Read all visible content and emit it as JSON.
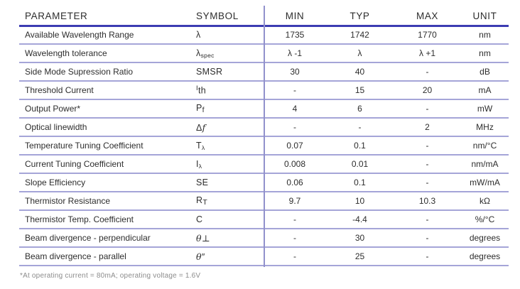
{
  "colors": {
    "header_rule": "#3c3cb2",
    "row_rule": "#a5a5d8",
    "divider": "#9191cc",
    "text": "#2d2d2d",
    "footnote": "#8c8c8c"
  },
  "table": {
    "headers": [
      "PARAMETER",
      "SYMBOL",
      "MIN",
      "TYP",
      "MAX",
      "UNIT"
    ],
    "rows": [
      {
        "parameter": "Available Wavelength Range",
        "symbol": [
          {
            "t": "λ"
          }
        ],
        "min": "1735",
        "typ": "1742",
        "max": "1770",
        "unit": "nm"
      },
      {
        "parameter": "Wavelength tolerance",
        "symbol": [
          {
            "t": "λ"
          },
          {
            "t": "spec",
            "cls": "sub-small"
          }
        ],
        "min": "λ -1",
        "typ": "λ",
        "max": "λ +1",
        "unit": "nm"
      },
      {
        "parameter": "Side Mode Supression Ratio",
        "symbol": [
          {
            "t": "SMSR"
          }
        ],
        "min": "30",
        "typ": "40",
        "max": "-",
        "unit": "dB"
      },
      {
        "parameter": "Threshold Current",
        "symbol": [
          {
            "t": "I",
            "cls": "sup"
          },
          {
            "t": "th"
          }
        ],
        "min": "-",
        "typ": "15",
        "max": "20",
        "unit": "mA"
      },
      {
        "parameter": "Output Power*",
        "symbol": [
          {
            "t": "P"
          },
          {
            "t": "f",
            "cls": "sub"
          }
        ],
        "min": "4",
        "typ": "6",
        "max": "-",
        "unit": "mW"
      },
      {
        "parameter": "Optical linewidth",
        "symbol": [
          {
            "t": "Δ"
          },
          {
            "t": "f",
            "cls": "italic"
          }
        ],
        "min": "-",
        "typ": "-",
        "max": "2",
        "unit": "MHz"
      },
      {
        "parameter": "Temperature Tuning Coefficient",
        "symbol": [
          {
            "t": "T"
          },
          {
            "t": "λ",
            "cls": "sub-small"
          }
        ],
        "min": "0.07",
        "typ": "0.1",
        "max": "-",
        "unit": "nm/°C"
      },
      {
        "parameter": "Current Tuning Coefficient",
        "symbol": [
          {
            "t": "I"
          },
          {
            "t": "λ",
            "cls": "sub-small"
          }
        ],
        "min": "0.008",
        "typ": "0.01",
        "max": "-",
        "unit": "nm/mA"
      },
      {
        "parameter": "Slope Efficiency",
        "symbol": [
          {
            "t": "SE"
          }
        ],
        "min": "0.06",
        "typ": "0.1",
        "max": "-",
        "unit": "mW/mA"
      },
      {
        "parameter": "Thermistor Resistance",
        "symbol": [
          {
            "t": "R"
          },
          {
            "t": "T",
            "cls": "sub"
          }
        ],
        "min": "9.7",
        "typ": "10",
        "max": "10.3",
        "unit": "kΩ"
      },
      {
        "parameter": "Thermistor Temp. Coefficient",
        "symbol": [
          {
            "t": "C"
          }
        ],
        "min": "-",
        "typ": "-4.4",
        "max": "-",
        "unit": "%/°C"
      },
      {
        "parameter": "Beam divergence - perpendicular",
        "symbol": [
          {
            "t": "θ",
            "cls": "italic"
          },
          {
            "t": "⊥",
            "cls": "italic"
          }
        ],
        "min": "-",
        "typ": "30",
        "max": "-",
        "unit": "degrees"
      },
      {
        "parameter": "Beam divergence - parallel",
        "symbol": [
          {
            "t": "θ",
            "cls": "italic"
          },
          {
            "t": "″"
          }
        ],
        "min": "-",
        "typ": "25",
        "max": "-",
        "unit": "degrees"
      }
    ],
    "footnote": "*At operating current = 80mA; operating voltage = 1.6V"
  }
}
